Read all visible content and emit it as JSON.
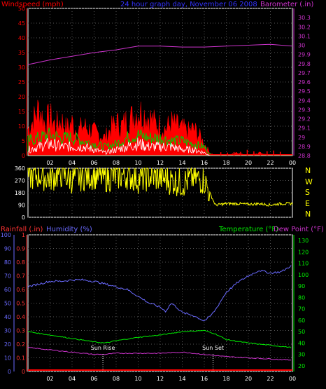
{
  "header": {
    "title": "24 hour graph day, November 06 2008",
    "left_label": "Windspeed (mph)",
    "right_label": "Barometer (.in)"
  },
  "direction_letters": [
    "N",
    "W",
    "S",
    "E",
    "N"
  ],
  "middle_header": {
    "rain_label": "Rainfall (.in)",
    "humidity_label": "Humidity (%)",
    "temp_label": "Temperature (°F)",
    "dew_label": "Dew Point (°F)"
  },
  "events": {
    "sunrise": "Sun Rise",
    "sunset": "Sun Set"
  },
  "colors": {
    "wind_gust": "#ff0000",
    "wind_avg": "#00cc00",
    "wind_low": "#ffffff",
    "barometer": "#cc33cc",
    "direction": "#ffff00",
    "humidity": "#6a6aff",
    "temperature": "#00ee00",
    "dewpoint": "#cc33cc",
    "rain": "#ff0000",
    "axis_left": "#ff0000",
    "axis_right": "#cc33cc",
    "axis_rain": "#ff3333",
    "axis_humidity": "#6a6aff",
    "axis_temp": "#00ee00",
    "title": "#3333ff"
  },
  "chart_data": [
    {
      "type": "line",
      "name": "wind-barometer",
      "x_ticks": [
        "02",
        "04",
        "06",
        "08",
        "10",
        "12",
        "14",
        "16",
        "18",
        "20",
        "22",
        "00"
      ],
      "x_range": [
        0,
        24
      ],
      "ylim_left": [
        0,
        50
      ],
      "yticks_left": [
        "0",
        "5",
        "10",
        "15",
        "20",
        "25",
        "30",
        "35",
        "40",
        "45",
        "50"
      ],
      "ylim_right": [
        28.8,
        30.4
      ],
      "yticks_right": [
        "28.8",
        "28.9",
        "29",
        "29.1",
        "29.2",
        "29.3",
        "29.4",
        "29.5",
        "29.6",
        "29.7",
        "29.8",
        "29.9",
        "30",
        "30.1",
        "30.2",
        "30.3"
      ],
      "series": [
        {
          "name": "Windspeed gust",
          "axis": "left",
          "x": [
            0,
            0.5,
            1,
            1.5,
            2,
            2.5,
            3,
            3.5,
            4,
            4.5,
            5,
            5.5,
            6,
            6.5,
            7,
            7.5,
            8,
            8.5,
            9,
            9.5,
            10,
            10.5,
            11,
            11.5,
            12,
            12.5,
            13,
            13.5,
            14,
            14.5,
            15,
            15.5,
            16,
            16.5,
            17,
            17.5,
            18,
            19,
            20,
            21,
            22,
            23,
            24
          ],
          "y": [
            9,
            12,
            16,
            11,
            13,
            10,
            12,
            9,
            11,
            8,
            10,
            9,
            8,
            7,
            6,
            9,
            11,
            10,
            12,
            13,
            15,
            14,
            13,
            11,
            10,
            9,
            11,
            10,
            9,
            8,
            9,
            7,
            4,
            1,
            0,
            0,
            0,
            1,
            0,
            1,
            0,
            0,
            0
          ]
        },
        {
          "name": "Windspeed average",
          "axis": "left",
          "x": [
            0,
            1,
            2,
            3,
            4,
            5,
            6,
            7,
            8,
            9,
            10,
            11,
            12,
            13,
            14,
            15,
            16,
            16.5,
            17,
            24
          ],
          "y": [
            5,
            6,
            7,
            6,
            6,
            5,
            4,
            3,
            4,
            6,
            7,
            6,
            6,
            5,
            5,
            4,
            3,
            0.5,
            0,
            0
          ]
        },
        {
          "name": "Windspeed low",
          "axis": "left",
          "x": [
            0,
            1,
            2,
            3,
            4,
            5,
            6,
            7,
            8,
            9,
            10,
            11,
            12,
            13,
            14,
            15,
            16,
            16.5,
            17,
            24
          ],
          "y": [
            2,
            3,
            4,
            3,
            3,
            3,
            2,
            1,
            2,
            3,
            4,
            3,
            3,
            3,
            2,
            2,
            1,
            0,
            0,
            0
          ]
        },
        {
          "name": "Barometer",
          "axis": "right",
          "x": [
            0,
            2,
            4,
            6,
            8,
            9,
            10,
            12,
            14,
            16,
            18,
            20,
            22,
            23,
            24
          ],
          "y": [
            29.79,
            29.84,
            29.88,
            29.92,
            29.95,
            29.97,
            29.99,
            29.99,
            29.98,
            29.98,
            29.99,
            30.0,
            30.01,
            30.0,
            29.99
          ]
        }
      ]
    },
    {
      "type": "scatter",
      "name": "wind-direction",
      "x_range": [
        0,
        24
      ],
      "ylim": [
        0,
        360
      ],
      "yticks": [
        "0",
        "90",
        "180",
        "270",
        "360"
      ],
      "series": [
        {
          "name": "Wind direction",
          "x": [
            0,
            1,
            2,
            3,
            4,
            5,
            6,
            7,
            8,
            9,
            10,
            11,
            12,
            13,
            14,
            15,
            16,
            17,
            18,
            19,
            20,
            21,
            22,
            23,
            24
          ],
          "y": [
            300,
            310,
            290,
            320,
            280,
            300,
            310,
            290,
            300,
            310,
            280,
            300,
            290,
            270,
            250,
            290,
            270,
            90,
            100,
            100,
            95,
            100,
            90,
            100,
            100
          ]
        }
      ]
    },
    {
      "type": "line",
      "name": "temperature-humidity",
      "x_ticks": [
        "02",
        "04",
        "06",
        "08",
        "10",
        "12",
        "14",
        "16",
        "18",
        "20",
        "22",
        "00"
      ],
      "x_range": [
        0,
        24
      ],
      "ylim_rain": [
        0,
        1
      ],
      "yticks_rain": [
        "0",
        "0.1",
        "0.2",
        "0.3",
        "0.4",
        "0.5",
        "0.6",
        "0.7",
        "0.8",
        "0.9",
        "1"
      ],
      "ylim_humidity": [
        0,
        100
      ],
      "yticks_humidity": [
        "0",
        "10",
        "20",
        "30",
        "40",
        "50",
        "60",
        "70",
        "80",
        "90",
        "100"
      ],
      "ylim_temp": [
        15,
        135
      ],
      "yticks_temp": [
        "20",
        "30",
        "40",
        "50",
        "60",
        "70",
        "80",
        "90",
        "100",
        "110",
        "120",
        "130"
      ],
      "series": [
        {
          "name": "Humidity",
          "axis": "humidity",
          "x": [
            0,
            1,
            2,
            3,
            4,
            5,
            6,
            7,
            8,
            9,
            10,
            11,
            12,
            12.5,
            13,
            13.5,
            14,
            15,
            16,
            16.5,
            17,
            18,
            19,
            20,
            21,
            22,
            23,
            24
          ],
          "y": [
            62,
            64,
            66,
            66,
            67,
            67,
            66,
            64,
            62,
            60,
            55,
            50,
            47,
            44,
            50,
            47,
            43,
            41,
            37,
            40,
            45,
            58,
            65,
            70,
            74,
            72,
            73,
            78
          ]
        },
        {
          "name": "Temperature",
          "axis": "temp",
          "x": [
            0,
            2,
            4,
            6,
            7,
            8,
            10,
            12,
            14,
            16,
            17,
            18,
            20,
            22,
            24
          ],
          "y": [
            50,
            47,
            44,
            41,
            40,
            42,
            45,
            47,
            50,
            51,
            48,
            43,
            40,
            38,
            36
          ]
        },
        {
          "name": "Dew Point",
          "axis": "temp",
          "x": [
            0,
            2,
            4,
            6,
            7,
            8,
            10,
            12,
            14,
            16,
            17,
            18,
            20,
            22,
            24
          ],
          "y": [
            36,
            34,
            32,
            30,
            30,
            31,
            31,
            31,
            32,
            30,
            29,
            28,
            27,
            26,
            25
          ]
        },
        {
          "name": "Rainfall",
          "axis": "rain",
          "x": [
            0,
            24
          ],
          "y": [
            0,
            0
          ]
        }
      ],
      "annotations": [
        {
          "label": "Sun Rise",
          "x": 6.8
        },
        {
          "label": "Sun Set",
          "x": 16.8
        }
      ]
    }
  ]
}
